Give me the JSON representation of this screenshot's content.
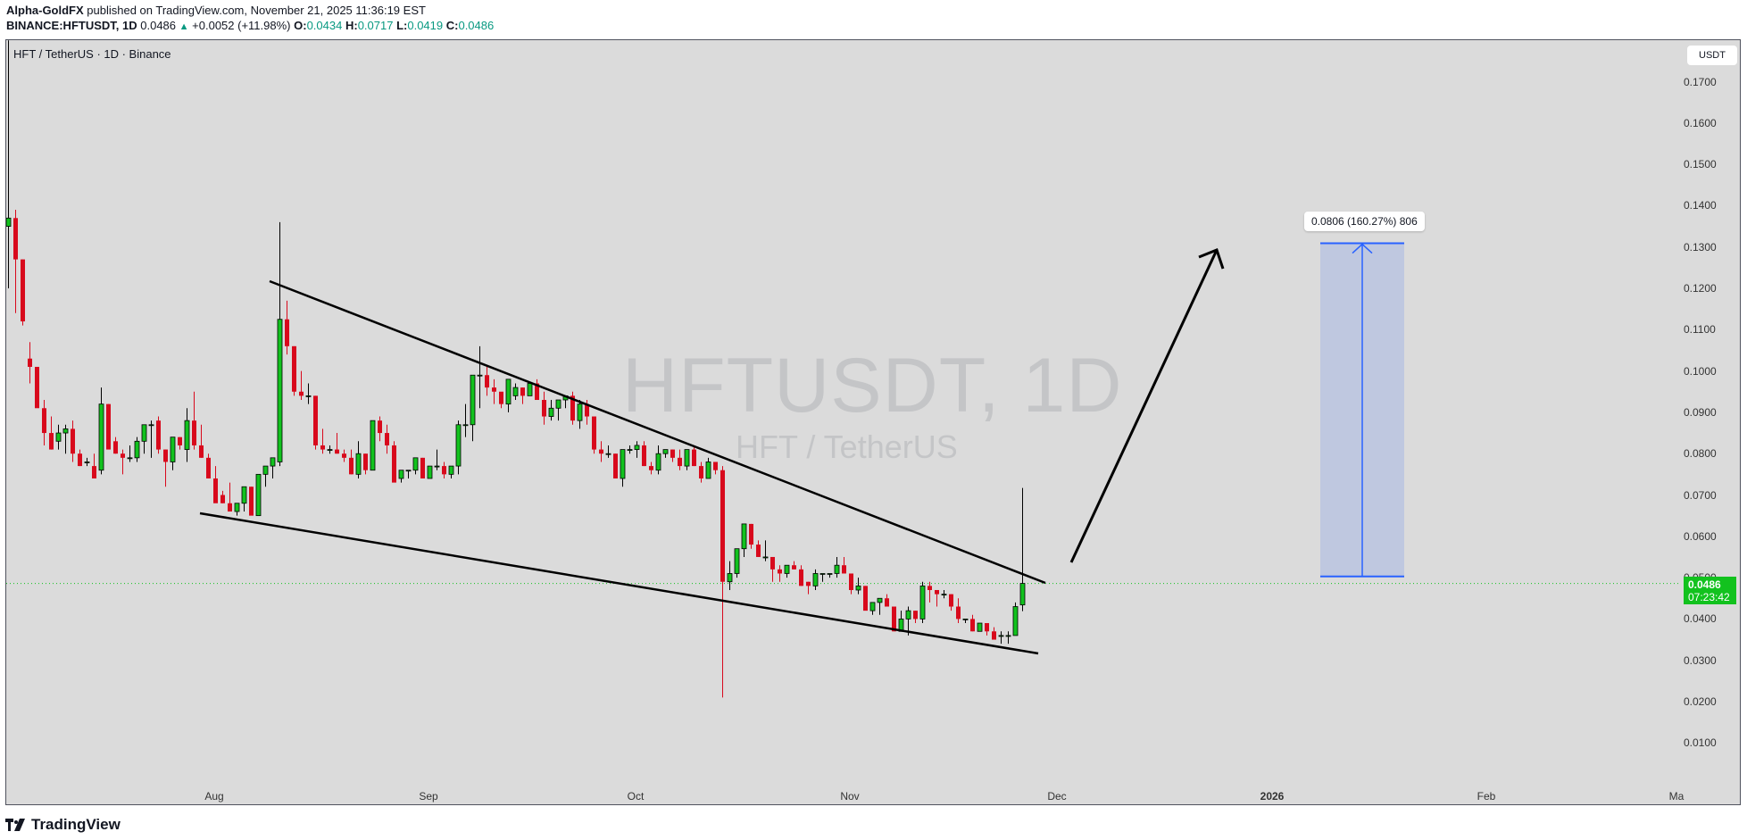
{
  "header": {
    "author": "Alpha-GoldFX",
    "published": " published on TradingView.com, November 21, 2025 11:36:19 EST",
    "symbol_line": "BINANCE:HFTUSDT, 1D",
    "last": "0.0486",
    "change_icon": "triangle-up-icon",
    "change": "+0.0052 (+11.98%)",
    "o_label": "O:",
    "o": "0.0434",
    "h_label": "H:",
    "h": "0.0717",
    "l_label": "L:",
    "l": "0.0419",
    "c_label": "C:",
    "c": "0.0486"
  },
  "chart": {
    "legend": "HFT / TetherUS · 1D · Binance",
    "watermark_main": "HFTUSDT, 1D",
    "watermark_sub": "HFT / TetherUS",
    "currency_button": "USDT",
    "price_tag": {
      "price": "0.0486",
      "countdown": "07:23:42",
      "color": "#12c21e"
    },
    "measure_label": "0.0806 (160.27%) 806",
    "colors": {
      "up": "#12c21e",
      "down": "#d8091c",
      "background": "#dbdbdb",
      "measure_fill": "#bfc8e0",
      "measure_line": "#2962ff",
      "trendline": "#000000",
      "price_line": "#12c21e"
    }
  },
  "yaxis": {
    "labels": [
      "0.1700",
      "0.1600",
      "0.1500",
      "0.1400",
      "0.1300",
      "0.1200",
      "0.1100",
      "0.1000",
      "0.0900",
      "0.0800",
      "0.0700",
      "0.0600",
      "0.0500",
      "0.0400",
      "0.0300",
      "0.0200",
      "0.0100"
    ]
  },
  "xaxis": {
    "labels": [
      "Aug",
      "Sep",
      "Oct",
      "Nov",
      "Dec",
      "2026",
      "Feb",
      "Ma"
    ]
  },
  "footer": {
    "brand": "TradingView",
    "logo_icon": "tradingview-logo-icon"
  },
  "chart_data": {
    "type": "candlestick",
    "title": "HFT / TetherUS · 1D · Binance",
    "symbol": "BINANCE:HFTUSDT",
    "timeframe": "1D",
    "xlabel": "",
    "ylabel": "USDT",
    "ylim": [
      0.0,
      0.175
    ],
    "y_ticks": [
      0.17,
      0.16,
      0.15,
      0.14,
      0.13,
      0.12,
      0.11,
      0.1,
      0.09,
      0.08,
      0.07,
      0.06,
      0.05,
      0.04,
      0.03,
      0.02,
      0.01
    ],
    "x_ticks": [
      "Aug",
      "Sep",
      "Oct",
      "Nov",
      "Dec",
      "2026",
      "Feb",
      "Ma"
    ],
    "grid": false,
    "last": {
      "open": 0.0434,
      "high": 0.0717,
      "low": 0.0419,
      "close": 0.0486,
      "change": 0.0052,
      "change_pct": 11.98
    },
    "candles": [
      [
        0.135,
        0.18,
        0.12,
        0.137
      ],
      [
        0.137,
        0.139,
        0.114,
        0.127
      ],
      [
        0.127,
        0.127,
        0.111,
        0.112
      ],
      [
        0.103,
        0.107,
        0.097,
        0.101
      ],
      [
        0.101,
        0.101,
        0.092,
        0.091
      ],
      [
        0.091,
        0.093,
        0.082,
        0.085
      ],
      [
        0.085,
        0.089,
        0.081,
        0.081
      ],
      [
        0.083,
        0.087,
        0.081,
        0.085
      ],
      [
        0.085,
        0.087,
        0.08,
        0.086
      ],
      [
        0.086,
        0.088,
        0.078,
        0.08
      ],
      [
        0.08,
        0.081,
        0.077,
        0.077
      ],
      [
        0.078,
        0.079,
        0.077,
        0.078
      ],
      [
        0.077,
        0.08,
        0.075,
        0.074
      ],
      [
        0.076,
        0.096,
        0.075,
        0.092
      ],
      [
        0.092,
        0.092,
        0.083,
        0.081
      ],
      [
        0.083,
        0.084,
        0.08,
        0.08
      ],
      [
        0.08,
        0.081,
        0.075,
        0.079
      ],
      [
        0.079,
        0.082,
        0.078,
        0.079
      ],
      [
        0.079,
        0.084,
        0.078,
        0.083
      ],
      [
        0.083,
        0.086,
        0.08,
        0.087
      ],
      [
        0.087,
        0.088,
        0.079,
        0.087
      ],
      [
        0.088,
        0.089,
        0.08,
        0.081
      ],
      [
        0.081,
        0.081,
        0.072,
        0.078
      ],
      [
        0.078,
        0.084,
        0.076,
        0.084
      ],
      [
        0.084,
        0.084,
        0.081,
        0.082
      ],
      [
        0.081,
        0.091,
        0.078,
        0.088
      ],
      [
        0.088,
        0.095,
        0.081,
        0.082
      ],
      [
        0.082,
        0.087,
        0.079,
        0.079
      ],
      [
        0.079,
        0.08,
        0.074,
        0.074
      ],
      [
        0.074,
        0.077,
        0.07,
        0.068
      ],
      [
        0.07,
        0.071,
        0.068,
        0.068
      ],
      [
        0.068,
        0.073,
        0.066,
        0.066
      ],
      [
        0.066,
        0.068,
        0.065,
        0.068
      ],
      [
        0.068,
        0.072,
        0.066,
        0.072
      ],
      [
        0.072,
        0.072,
        0.066,
        0.065
      ],
      [
        0.065,
        0.075,
        0.065,
        0.075
      ],
      [
        0.075,
        0.077,
        0.072,
        0.077
      ],
      [
        0.077,
        0.079,
        0.074,
        0.079
      ],
      [
        0.078,
        0.136,
        0.077,
        0.1125
      ],
      [
        0.1125,
        0.117,
        0.104,
        0.106
      ],
      [
        0.106,
        0.106,
        0.094,
        0.095
      ],
      [
        0.095,
        0.1,
        0.093,
        0.094
      ],
      [
        0.094,
        0.097,
        0.092,
        0.094
      ],
      [
        0.094,
        0.094,
        0.081,
        0.082
      ],
      [
        0.082,
        0.086,
        0.08,
        0.081
      ],
      [
        0.081,
        0.082,
        0.08,
        0.081
      ],
      [
        0.081,
        0.085,
        0.08,
        0.08
      ],
      [
        0.08,
        0.081,
        0.078,
        0.079
      ],
      [
        0.079,
        0.081,
        0.075,
        0.075
      ],
      [
        0.075,
        0.083,
        0.074,
        0.08
      ],
      [
        0.08,
        0.08,
        0.075,
        0.076
      ],
      [
        0.076,
        0.086,
        0.076,
        0.088
      ],
      [
        0.088,
        0.089,
        0.083,
        0.085
      ],
      [
        0.085,
        0.087,
        0.08,
        0.082
      ],
      [
        0.082,
        0.083,
        0.074,
        0.073
      ],
      [
        0.074,
        0.076,
        0.073,
        0.076
      ],
      [
        0.076,
        0.076,
        0.074,
        0.076
      ],
      [
        0.076,
        0.079,
        0.075,
        0.079
      ],
      [
        0.079,
        0.079,
        0.075,
        0.074
      ],
      [
        0.074,
        0.077,
        0.076,
        0.077
      ],
      [
        0.077,
        0.081,
        0.076,
        0.077
      ],
      [
        0.077,
        0.078,
        0.074,
        0.075
      ],
      [
        0.075,
        0.076,
        0.074,
        0.077
      ],
      [
        0.077,
        0.088,
        0.075,
        0.087
      ],
      [
        0.087,
        0.092,
        0.084,
        0.087
      ],
      [
        0.087,
        0.098,
        0.083,
        0.099
      ],
      [
        0.099,
        0.106,
        0.091,
        0.099
      ],
      [
        0.099,
        0.101,
        0.094,
        0.096
      ],
      [
        0.096,
        0.098,
        0.092,
        0.095
      ],
      [
        0.095,
        0.094,
        0.091,
        0.092
      ],
      [
        0.092,
        0.098,
        0.09,
        0.098
      ],
      [
        0.094,
        0.097,
        0.093,
        0.096
      ],
      [
        0.096,
        0.096,
        0.092,
        0.094
      ],
      [
        0.094,
        0.097,
        0.094,
        0.097
      ],
      [
        0.097,
        0.098,
        0.093,
        0.093
      ],
      [
        0.093,
        0.095,
        0.087,
        0.089
      ],
      [
        0.089,
        0.093,
        0.088,
        0.091
      ],
      [
        0.091,
        0.093,
        0.088,
        0.093
      ],
      [
        0.093,
        0.094,
        0.091,
        0.094
      ],
      [
        0.094,
        0.095,
        0.087,
        0.088
      ],
      [
        0.088,
        0.093,
        0.086,
        0.092
      ],
      [
        0.092,
        0.093,
        0.087,
        0.089
      ],
      [
        0.089,
        0.089,
        0.08,
        0.081
      ],
      [
        0.081,
        0.083,
        0.078,
        0.08
      ],
      [
        0.08,
        0.082,
        0.079,
        0.08
      ],
      [
        0.08,
        0.08,
        0.074,
        0.074
      ],
      [
        0.074,
        0.081,
        0.072,
        0.081
      ],
      [
        0.081,
        0.082,
        0.08,
        0.081
      ],
      [
        0.081,
        0.083,
        0.079,
        0.082
      ],
      [
        0.082,
        0.083,
        0.077,
        0.077
      ],
      [
        0.077,
        0.078,
        0.075,
        0.076
      ],
      [
        0.076,
        0.082,
        0.075,
        0.08
      ],
      [
        0.08,
        0.081,
        0.079,
        0.081
      ],
      [
        0.081,
        0.081,
        0.078,
        0.079
      ],
      [
        0.079,
        0.081,
        0.076,
        0.077
      ],
      [
        0.077,
        0.081,
        0.076,
        0.081
      ],
      [
        0.081,
        0.082,
        0.077,
        0.077
      ],
      [
        0.077,
        0.078,
        0.073,
        0.074
      ],
      [
        0.074,
        0.079,
        0.074,
        0.078
      ],
      [
        0.078,
        0.078,
        0.075,
        0.076
      ],
      [
        0.076,
        0.077,
        0.021,
        0.049
      ],
      [
        0.049,
        0.054,
        0.047,
        0.051
      ],
      [
        0.051,
        0.056,
        0.05,
        0.057
      ],
      [
        0.057,
        0.06,
        0.055,
        0.063
      ],
      [
        0.063,
        0.063,
        0.057,
        0.058
      ],
      [
        0.058,
        0.059,
        0.055,
        0.055
      ],
      [
        0.055,
        0.059,
        0.054,
        0.055
      ],
      [
        0.055,
        0.054,
        0.049,
        0.052
      ],
      [
        0.052,
        0.053,
        0.049,
        0.051
      ],
      [
        0.051,
        0.053,
        0.05,
        0.053
      ],
      [
        0.053,
        0.054,
        0.052,
        0.052
      ],
      [
        0.052,
        0.053,
        0.048,
        0.048
      ],
      [
        0.049,
        0.049,
        0.046,
        0.048
      ],
      [
        0.048,
        0.052,
        0.047,
        0.051
      ],
      [
        0.051,
        0.051,
        0.049,
        0.051
      ],
      [
        0.051,
        0.051,
        0.05,
        0.051
      ],
      [
        0.051,
        0.055,
        0.05,
        0.053
      ],
      [
        0.053,
        0.055,
        0.051,
        0.051
      ],
      [
        0.051,
        0.05,
        0.046,
        0.047
      ],
      [
        0.047,
        0.05,
        0.046,
        0.048
      ],
      [
        0.048,
        0.048,
        0.043,
        0.042
      ],
      [
        0.042,
        0.043,
        0.041,
        0.044
      ],
      [
        0.044,
        0.044,
        0.041,
        0.045
      ],
      [
        0.045,
        0.046,
        0.043,
        0.043
      ],
      [
        0.043,
        0.042,
        0.037,
        0.037
      ],
      [
        0.037,
        0.042,
        0.038,
        0.04
      ],
      [
        0.04,
        0.043,
        0.036,
        0.042
      ],
      [
        0.042,
        0.042,
        0.039,
        0.04
      ],
      [
        0.04,
        0.049,
        0.039,
        0.048
      ],
      [
        0.048,
        0.049,
        0.044,
        0.047
      ],
      [
        0.047,
        0.047,
        0.043,
        0.046
      ],
      [
        0.046,
        0.047,
        0.045,
        0.046
      ],
      [
        0.046,
        0.046,
        0.042,
        0.043
      ],
      [
        0.043,
        0.045,
        0.039,
        0.04
      ],
      [
        0.04,
        0.04,
        0.039,
        0.04
      ],
      [
        0.04,
        0.041,
        0.037,
        0.037
      ],
      [
        0.037,
        0.039,
        0.037,
        0.039
      ],
      [
        0.039,
        0.039,
        0.036,
        0.037
      ],
      [
        0.037,
        0.038,
        0.035,
        0.035
      ],
      [
        0.036,
        0.037,
        0.034,
        0.036
      ],
      [
        0.036,
        0.037,
        0.034,
        0.036
      ],
      [
        0.036,
        0.044,
        0.036,
        0.043
      ],
      [
        0.0434,
        0.0717,
        0.0419,
        0.0486
      ]
    ],
    "candle_format": "[open, high, low, close]",
    "annotations": {
      "upper_trendline": {
        "from": {
          "date": "~Aug 10",
          "price": 0.1215
        },
        "to": {
          "date": "~Nov 29",
          "price": 0.0485
        }
      },
      "lower_trendline": {
        "from": {
          "date": "~Jul 29",
          "price": 0.0655
        },
        "to": {
          "date": "~Nov 28",
          "price": 0.0315
        }
      },
      "projection_arrow": {
        "from_price": 0.0545,
        "to_price": 0.13,
        "direction": "up"
      },
      "measure": {
        "from": 0.0503,
        "to": 0.1309,
        "delta": 0.0806,
        "pct": 160.27,
        "ticks": 806,
        "label": "0.0806 (160.27%) 806"
      },
      "current_price_line": 0.0486
    }
  }
}
